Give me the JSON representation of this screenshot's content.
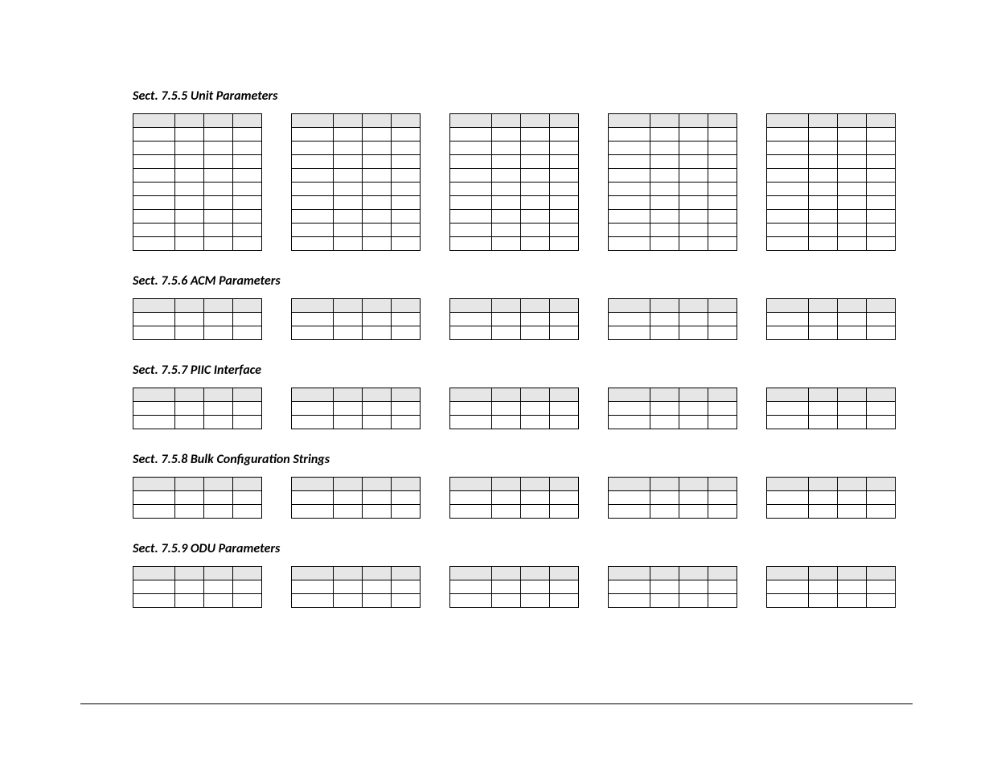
{
  "sections": [
    {
      "title": "Sect. 7.5.5  Unit Parameters",
      "body_rows": 9,
      "tables": 5
    },
    {
      "title": "Sect. 7.5.6 ACM Parameters",
      "body_rows": 2,
      "tables": 5
    },
    {
      "title": "Sect. 7.5.7 PIIC Interface",
      "body_rows": 2,
      "tables": 5
    },
    {
      "title": "Sect. 7.5.8 Bulk Configuration Strings",
      "body_rows": 2,
      "tables": 5
    },
    {
      "title": "Sect. 7.5.9 ODU Parameters",
      "body_rows": 2,
      "tables": 5
    }
  ],
  "columns_per_table": 4,
  "header_bg": "#e6e6e6",
  "border_color": "#000000",
  "background_color": "#ffffff",
  "title_font": {
    "style": "italic",
    "weight": "bold",
    "size_pt": 12
  }
}
